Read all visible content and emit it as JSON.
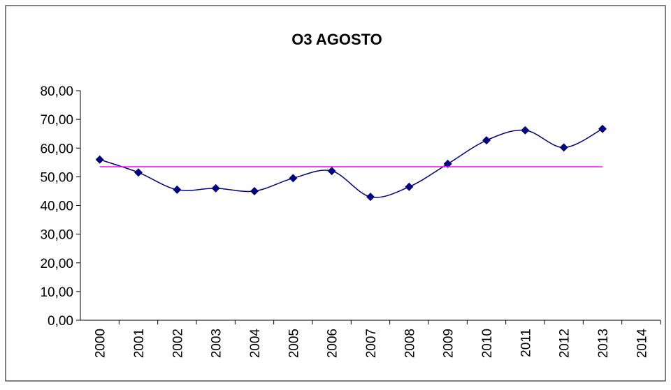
{
  "chart_data": {
    "type": "line",
    "title": "O3 AGOSTO",
    "categories": [
      "2000",
      "2001",
      "2002",
      "2003",
      "2004",
      "2005",
      "2006",
      "2007",
      "2008",
      "2009",
      "2010",
      "2011",
      "2012",
      "2013",
      "2014"
    ],
    "series": [
      {
        "color": "#000080",
        "smooth": true,
        "marker": "diamond",
        "values": [
          56.0,
          51.5,
          45.5,
          46.0,
          45.0,
          49.5,
          52.0,
          43.0,
          46.5,
          54.5,
          62.7,
          66.2,
          60.2,
          66.7,
          null
        ]
      },
      {
        "color": "#ff00ff",
        "smooth": false,
        "marker": "none",
        "values": [
          53.5,
          53.5,
          53.5,
          53.5,
          53.5,
          53.5,
          53.5,
          53.5,
          53.5,
          53.5,
          53.5,
          53.5,
          53.5,
          53.5,
          null
        ]
      }
    ],
    "ylim": [
      0,
      80
    ],
    "yticks": [
      {
        "value": 0,
        "label": "0,00"
      },
      {
        "value": 10,
        "label": "10,00"
      },
      {
        "value": 20,
        "label": "20,00"
      },
      {
        "value": 30,
        "label": "30,00"
      },
      {
        "value": 40,
        "label": "40,00"
      },
      {
        "value": 50,
        "label": "50,00"
      },
      {
        "value": 60,
        "label": "60,00"
      },
      {
        "value": 70,
        "label": "70,00"
      },
      {
        "value": 80,
        "label": "80,00"
      }
    ],
    "grid": false
  }
}
